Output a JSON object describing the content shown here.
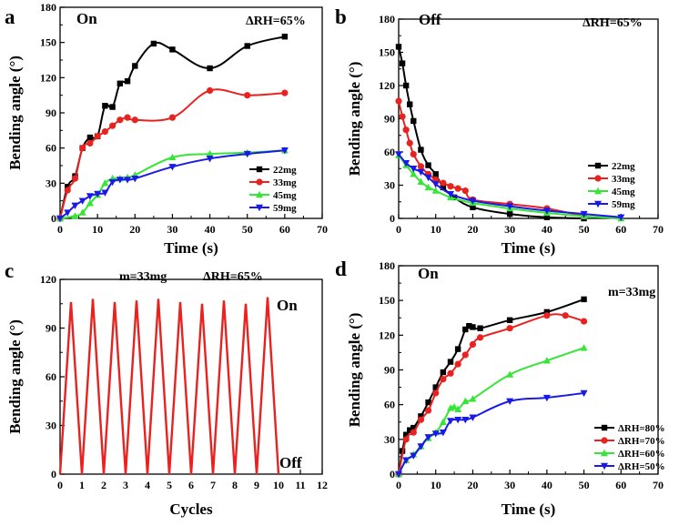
{
  "chart_data": [
    {
      "panel": "a",
      "type": "line",
      "annotations": [
        "On",
        "ΔRH=65%"
      ],
      "xlabel": "Time (s)",
      "ylabel": "Bending angle (°)",
      "xlim": [
        0,
        70
      ],
      "ylim": [
        0,
        180
      ],
      "xticks": [
        0,
        10,
        20,
        30,
        40,
        50,
        60,
        70
      ],
      "yticks": [
        0,
        30,
        60,
        90,
        120,
        150,
        180
      ],
      "legend_position": "lower-right",
      "series": [
        {
          "name": "22mg",
          "color": "#000000",
          "marker": "square",
          "x": [
            0,
            2,
            4,
            6,
            8,
            10,
            12,
            14,
            16,
            18,
            20,
            25,
            30,
            40,
            50,
            60
          ],
          "y": [
            0,
            27,
            36,
            60,
            69,
            70,
            96,
            95,
            115,
            117,
            130,
            149,
            144,
            128,
            147,
            155
          ]
        },
        {
          "name": "33mg",
          "color": "#e8221f",
          "marker": "circle",
          "x": [
            0,
            2,
            4,
            6,
            8,
            10,
            12,
            14,
            16,
            18,
            20,
            30,
            40,
            50,
            60
          ],
          "y": [
            0,
            24,
            34,
            60,
            64,
            70,
            74,
            79,
            84,
            86,
            84,
            86,
            109,
            105,
            107
          ]
        },
        {
          "name": "45mg",
          "color": "#36e636",
          "marker": "triangle-up",
          "x": [
            0,
            4,
            6,
            8,
            10,
            12,
            14,
            16,
            18,
            20,
            30,
            40,
            50,
            60
          ],
          "y": [
            0,
            2,
            5,
            13,
            20,
            30,
            34,
            34,
            35,
            37,
            52,
            55,
            56,
            58
          ]
        },
        {
          "name": "59mg",
          "color": "#1a1ae8",
          "marker": "triangle-down",
          "x": [
            0,
            2,
            4,
            6,
            8,
            10,
            12,
            14,
            16,
            18,
            20,
            30,
            40,
            50,
            60
          ],
          "y": [
            0,
            5,
            11,
            15,
            19,
            21,
            22,
            31,
            33,
            33,
            34,
            44,
            51,
            55,
            58
          ]
        }
      ]
    },
    {
      "panel": "b",
      "type": "line",
      "annotations": [
        "Off",
        "ΔRH=65%"
      ],
      "xlabel": "Time (s)",
      "ylabel": "Bending angle (°)",
      "xlim": [
        0,
        70
      ],
      "ylim": [
        0,
        180
      ],
      "xticks": [
        0,
        10,
        20,
        30,
        40,
        50,
        60,
        70
      ],
      "yticks": [
        0,
        30,
        60,
        90,
        120,
        150,
        180
      ],
      "legend_position": "lower-right",
      "series": [
        {
          "name": "22mg",
          "color": "#000000",
          "marker": "square",
          "x": [
            0,
            1,
            2,
            3,
            4,
            6,
            8,
            10,
            12,
            15,
            20,
            30,
            40,
            50
          ],
          "y": [
            155,
            140,
            120,
            103,
            88,
            62,
            48,
            40,
            28,
            19,
            10,
            4,
            1,
            0
          ]
        },
        {
          "name": "33mg",
          "color": "#e8221f",
          "marker": "circle",
          "x": [
            0,
            1,
            2,
            3,
            4,
            6,
            8,
            10,
            12,
            14,
            16,
            18,
            20,
            30,
            40,
            50
          ],
          "y": [
            106,
            92,
            80,
            68,
            58,
            47,
            40,
            35,
            32,
            29,
            27,
            25,
            17,
            13,
            9,
            2
          ]
        },
        {
          "name": "45mg",
          "color": "#36e636",
          "marker": "triangle-up",
          "x": [
            0,
            2,
            4,
            6,
            8,
            10,
            14,
            20,
            30,
            40,
            50,
            60
          ],
          "y": [
            57,
            48,
            40,
            33,
            28,
            25,
            19,
            14,
            9,
            5,
            2,
            0
          ]
        },
        {
          "name": "59mg",
          "color": "#1a1ae8",
          "marker": "triangle-down",
          "x": [
            0,
            2,
            4,
            6,
            8,
            10,
            14,
            20,
            30,
            40,
            50,
            60
          ],
          "y": [
            58,
            50,
            45,
            42,
            37,
            31,
            22,
            16,
            11,
            7,
            4,
            1
          ]
        }
      ]
    },
    {
      "panel": "c",
      "type": "line",
      "annotations": [
        "m=33mg",
        "ΔRH=65%",
        "On",
        "Off"
      ],
      "xlabel": "Cycles",
      "ylabel": "Bending angle (°)",
      "xlim": [
        0,
        12
      ],
      "ylim": [
        0,
        120
      ],
      "xticks": [
        0,
        1,
        2,
        3,
        4,
        5,
        6,
        7,
        8,
        9,
        10,
        11,
        12
      ],
      "yticks": [
        0,
        30,
        60,
        90,
        120
      ],
      "series": [
        {
          "name": "",
          "color": "#e8221f",
          "x": [
            0,
            0.5,
            1,
            1.5,
            2,
            2.5,
            3,
            3.5,
            4,
            4.5,
            5,
            5.5,
            6,
            6.5,
            7,
            7.5,
            8,
            8.5,
            9,
            9.5,
            10
          ],
          "y": [
            0,
            106,
            0,
            108,
            0,
            106,
            0,
            107,
            0,
            108,
            0,
            106,
            0,
            105,
            0,
            107,
            0,
            105,
            0,
            109,
            0
          ]
        }
      ]
    },
    {
      "panel": "d",
      "type": "line",
      "annotations": [
        "On",
        "m=33mg"
      ],
      "xlabel": "Time (s)",
      "ylabel": "Bending angle (°)",
      "xlim": [
        0,
        70
      ],
      "ylim": [
        0,
        180
      ],
      "xticks": [
        0,
        10,
        20,
        30,
        40,
        50,
        60,
        70
      ],
      "yticks": [
        0,
        30,
        60,
        90,
        120,
        150,
        180
      ],
      "legend_position": "lower-right",
      "series": [
        {
          "name": "ΔRH=80%",
          "color": "#000000",
          "marker": "square",
          "x": [
            0,
            1,
            2,
            3,
            4,
            6,
            8,
            10,
            12,
            14,
            16,
            18,
            19,
            20,
            22,
            30,
            40,
            50
          ],
          "y": [
            0,
            20,
            34,
            38,
            40,
            50,
            62,
            75,
            88,
            97,
            108,
            125,
            128,
            127,
            126,
            133,
            140,
            151
          ]
        },
        {
          "name": "ΔRH=70%",
          "color": "#e8221f",
          "marker": "circle",
          "x": [
            0,
            2,
            4,
            6,
            8,
            10,
            12,
            14,
            16,
            18,
            20,
            22,
            30,
            40,
            45,
            50
          ],
          "y": [
            0,
            30,
            36,
            47,
            55,
            70,
            82,
            87,
            95,
            103,
            112,
            118,
            126,
            137,
            137,
            132
          ]
        },
        {
          "name": "ΔRH=60%",
          "color": "#36e636",
          "marker": "triangle-up",
          "x": [
            0,
            2,
            4,
            6,
            8,
            10,
            12,
            14,
            15,
            16,
            18,
            20,
            30,
            40,
            50
          ],
          "y": [
            0,
            12,
            17,
            24,
            31,
            36,
            45,
            57,
            58,
            56,
            63,
            65,
            86,
            98,
            109
          ]
        },
        {
          "name": "ΔRH=50%",
          "color": "#1a1ae8",
          "marker": "triangle-down",
          "x": [
            0,
            2,
            4,
            6,
            8,
            10,
            12,
            14,
            16,
            18,
            20,
            30,
            40,
            50
          ],
          "y": [
            0,
            12,
            16,
            24,
            32,
            35,
            36,
            46,
            47,
            47,
            49,
            63,
            66,
            70
          ]
        }
      ]
    }
  ]
}
